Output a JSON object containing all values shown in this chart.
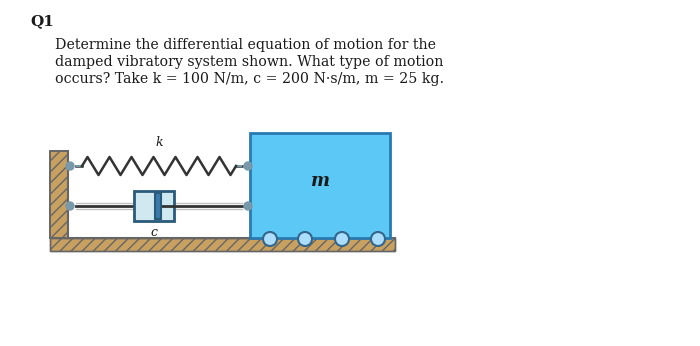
{
  "title_label": "Q1",
  "line1": "Determine the differential equation of motion for the",
  "line2": "damped vibratory system shown. What type of motion",
  "line3": "occurs? Take k = 100 N/m, c = 200 N·s/m, m = 25 kg.",
  "bg_color": "#ffffff",
  "wall_face": "#c8a060",
  "wall_edge": "#666666",
  "ground_face": "#c8a060",
  "ground_edge": "#666666",
  "spring_color": "#333333",
  "damper_color": "#2a5a7a",
  "damper_face": "#3a7aaa",
  "rod_color": "#333333",
  "mass_face": "#5bc8f5",
  "mass_edge": "#2a7ab0",
  "wheel_face": "#aaddff",
  "wheel_edge": "#336688",
  "text_color": "#1a1a1a",
  "connector_color": "#7799aa",
  "pin_color": "#aaaaaa"
}
